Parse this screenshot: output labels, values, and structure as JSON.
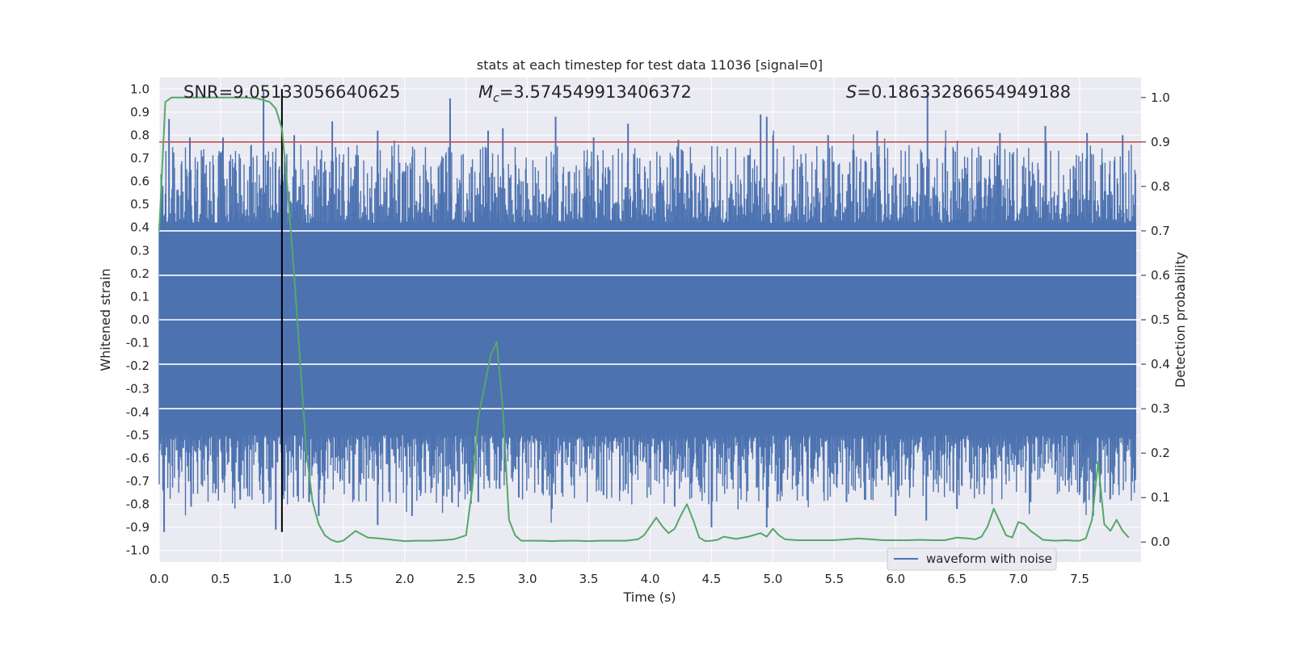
{
  "chart_data": {
    "type": "line",
    "title": "stats at each timestep for test data 11036 [signal=0]",
    "xlabel": "Time (s)",
    "ylabel_left": "Whitened strain",
    "ylabel_right": "Detection probability",
    "xlim": [
      0.0,
      8.0
    ],
    "ylim_left": [
      -1.05,
      1.05
    ],
    "ylim_right": [
      -0.045,
      1.045
    ],
    "x_ticks": [
      "0.0",
      "0.5",
      "1.0",
      "1.5",
      "2.0",
      "2.5",
      "3.0",
      "3.5",
      "4.0",
      "4.5",
      "5.0",
      "5.5",
      "6.0",
      "6.5",
      "7.0",
      "7.5"
    ],
    "y_ticks_left": [
      "1.0",
      "0.9",
      "0.8",
      "0.7",
      "0.6",
      "0.5",
      "0.4",
      "0.3",
      "0.2",
      "0.1",
      "0.0",
      "-0.1",
      "-0.2",
      "-0.3",
      "-0.4",
      "-0.5",
      "-0.6",
      "-0.7",
      "-0.8",
      "-0.9",
      "-1.0"
    ],
    "y_ticks_right": [
      "1.0",
      "0.9",
      "0.8",
      "0.7",
      "0.6",
      "0.5",
      "0.4",
      "0.3",
      "0.2",
      "0.1",
      "0.0"
    ],
    "grid": true,
    "legend_position": "lower-right",
    "stats": {
      "snr_label": "SNR=9.05133056640625",
      "mc_symbol": "M",
      "mc_subscript": "c",
      "mc_value": "=3.574549913406372",
      "s_symbol": "S",
      "s_value": "=0.18633286654949188"
    },
    "threshold": {
      "value": 0.9,
      "axis": "right",
      "color": "#c44e52"
    },
    "marker_line": {
      "x": 1.0,
      "y_from": -0.92,
      "y_to": 1.0,
      "color": "#000000"
    },
    "series": [
      {
        "name": "waveform with noise",
        "axis": "left",
        "color": "#4c72b0",
        "band": {
          "low": -0.5,
          "high": 0.42
        },
        "spikes_up": [
          [
            0.08,
            0.87
          ],
          [
            0.25,
            0.79
          ],
          [
            0.52,
            0.79
          ],
          [
            0.85,
            0.99
          ],
          [
            1.1,
            0.8
          ],
          [
            1.41,
            0.86
          ],
          [
            1.78,
            0.82
          ],
          [
            2.37,
            0.96
          ],
          [
            2.68,
            0.82
          ],
          [
            2.8,
            0.83
          ],
          [
            3.23,
            0.88
          ],
          [
            3.54,
            0.79
          ],
          [
            3.82,
            0.85
          ],
          [
            4.23,
            0.78
          ],
          [
            4.9,
            0.89
          ],
          [
            4.95,
            0.88
          ],
          [
            5.45,
            0.8
          ],
          [
            5.85,
            0.82
          ],
          [
            6.26,
            0.99
          ],
          [
            6.85,
            0.81
          ],
          [
            7.22,
            0.84
          ],
          [
            7.56,
            0.81
          ],
          [
            7.85,
            0.8
          ]
        ],
        "spikes_down": [
          [
            0.04,
            -0.92
          ],
          [
            0.26,
            -0.81
          ],
          [
            0.66,
            -0.78
          ],
          [
            0.95,
            -0.91
          ],
          [
            1.3,
            -0.85
          ],
          [
            1.78,
            -0.89
          ],
          [
            2.06,
            -0.85
          ],
          [
            2.6,
            -0.79
          ],
          [
            2.93,
            -0.77
          ],
          [
            3.2,
            -0.82
          ],
          [
            3.62,
            -0.76
          ],
          [
            4.2,
            -0.81
          ],
          [
            4.5,
            -0.9
          ],
          [
            4.95,
            -0.9
          ],
          [
            5.6,
            -0.79
          ],
          [
            6.0,
            -0.85
          ],
          [
            6.25,
            -0.87
          ],
          [
            6.5,
            -0.82
          ],
          [
            7.1,
            -0.79
          ],
          [
            7.61,
            -0.85
          ],
          [
            7.95,
            -0.64
          ]
        ]
      },
      {
        "name": "",
        "axis": "right",
        "color": "#55a868",
        "x": [
          0.0,
          0.05,
          0.1,
          0.2,
          0.3,
          0.4,
          0.5,
          0.6,
          0.7,
          0.8,
          0.9,
          0.95,
          1.0,
          1.05,
          1.1,
          1.15,
          1.2,
          1.25,
          1.3,
          1.35,
          1.4,
          1.45,
          1.5,
          1.6,
          1.7,
          1.8,
          1.9,
          2.0,
          2.1,
          2.2,
          2.3,
          2.4,
          2.5,
          2.55,
          2.6,
          2.65,
          2.7,
          2.75,
          2.8,
          2.85,
          2.9,
          2.95,
          3.0,
          3.1,
          3.2,
          3.3,
          3.4,
          3.5,
          3.6,
          3.7,
          3.8,
          3.9,
          3.95,
          4.0,
          4.05,
          4.1,
          4.15,
          4.2,
          4.25,
          4.3,
          4.35,
          4.4,
          4.45,
          4.5,
          4.55,
          4.6,
          4.7,
          4.8,
          4.9,
          4.95,
          5.0,
          5.05,
          5.1,
          5.2,
          5.3,
          5.4,
          5.5,
          5.6,
          5.7,
          5.8,
          5.9,
          6.0,
          6.1,
          6.2,
          6.3,
          6.4,
          6.5,
          6.6,
          6.65,
          6.7,
          6.75,
          6.8,
          6.85,
          6.9,
          6.95,
          7.0,
          7.05,
          7.1,
          7.2,
          7.3,
          7.4,
          7.45,
          7.5,
          7.55,
          7.6,
          7.65,
          7.7,
          7.75,
          7.8,
          7.85,
          7.9
        ],
        "values": [
          0.7,
          0.99,
          1.0,
          1.0,
          1.0,
          1.0,
          1.0,
          1.0,
          1.0,
          0.998,
          0.99,
          0.975,
          0.93,
          0.78,
          0.6,
          0.4,
          0.2,
          0.09,
          0.04,
          0.015,
          0.005,
          0.0,
          0.003,
          0.025,
          0.01,
          0.008,
          0.005,
          0.002,
          0.003,
          0.003,
          0.004,
          0.006,
          0.015,
          0.12,
          0.28,
          0.35,
          0.42,
          0.45,
          0.3,
          0.05,
          0.015,
          0.003,
          0.003,
          0.003,
          0.002,
          0.003,
          0.003,
          0.002,
          0.003,
          0.003,
          0.003,
          0.006,
          0.015,
          0.035,
          0.055,
          0.035,
          0.02,
          0.03,
          0.06,
          0.085,
          0.05,
          0.01,
          0.002,
          0.003,
          0.005,
          0.012,
          0.007,
          0.012,
          0.02,
          0.012,
          0.03,
          0.015,
          0.006,
          0.004,
          0.004,
          0.004,
          0.004,
          0.006,
          0.008,
          0.006,
          0.004,
          0.004,
          0.004,
          0.005,
          0.004,
          0.004,
          0.01,
          0.008,
          0.006,
          0.012,
          0.035,
          0.075,
          0.045,
          0.015,
          0.01,
          0.045,
          0.04,
          0.025,
          0.005,
          0.003,
          0.004,
          0.003,
          0.003,
          0.008,
          0.05,
          0.18,
          0.04,
          0.025,
          0.05,
          0.025,
          0.01
        ]
      }
    ]
  }
}
